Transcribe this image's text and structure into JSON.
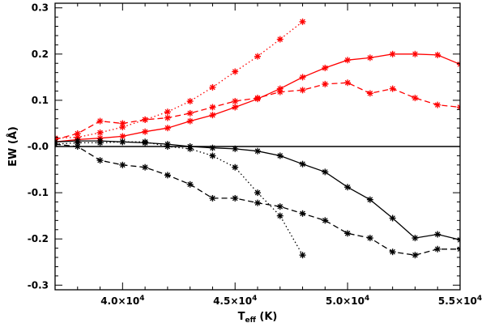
{
  "chart_data": {
    "type": "line",
    "title": "",
    "xlabel": {
      "main": "T",
      "sub": "eff",
      "unit": " (K)"
    },
    "ylabel": "EW (Å)",
    "xlim": [
      37000,
      55000
    ],
    "ylim": [
      -0.31,
      0.31
    ],
    "x_ticks": [
      {
        "value": 40000,
        "mantissa": "4.0×10",
        "exp": "4"
      },
      {
        "value": 45000,
        "mantissa": "4.5×10",
        "exp": "4"
      },
      {
        "value": 50000,
        "mantissa": "5.0×10",
        "exp": "4"
      },
      {
        "value": 55000,
        "mantissa": "5.5×10",
        "exp": "4"
      }
    ],
    "x_minor_step": 1000,
    "y_ticks": [
      {
        "value": 0.3,
        "label": "0.3"
      },
      {
        "value": 0.2,
        "label": "0.2"
      },
      {
        "value": 0.1,
        "label": "0.1"
      },
      {
        "value": 0.0,
        "label": "-0.0"
      },
      {
        "value": -0.1,
        "label": "-0.1"
      },
      {
        "value": -0.2,
        "label": "-0.2"
      },
      {
        "value": -0.3,
        "label": "-0.3"
      }
    ],
    "y_minor_step": 0.02,
    "reference_line": 0,
    "series": [
      {
        "name": "red-solid",
        "color": "#ff0000",
        "dash": "solid",
        "x": [
          37000,
          38000,
          39000,
          40000,
          41000,
          42000,
          43000,
          44000,
          45000,
          46000,
          47000,
          48000,
          49000,
          50000,
          51000,
          52000,
          53000,
          54000,
          55000
        ],
        "y": [
          0.01,
          0.015,
          0.018,
          0.022,
          0.032,
          0.04,
          0.055,
          0.068,
          0.085,
          0.103,
          0.125,
          0.15,
          0.17,
          0.187,
          0.192,
          0.2,
          0.2,
          0.198,
          0.178
        ]
      },
      {
        "name": "red-dashed",
        "color": "#ff0000",
        "dash": "dashed",
        "x": [
          37000,
          38000,
          39000,
          40000,
          41000,
          42000,
          43000,
          44000,
          45000,
          46000,
          47000,
          48000,
          49000,
          50000,
          51000,
          52000,
          53000,
          54000,
          55000
        ],
        "y": [
          0.015,
          0.028,
          0.055,
          0.05,
          0.058,
          0.062,
          0.072,
          0.085,
          0.098,
          0.105,
          0.118,
          0.122,
          0.135,
          0.138,
          0.115,
          0.125,
          0.105,
          0.09,
          0.085
        ]
      },
      {
        "name": "red-dotted",
        "color": "#ff0000",
        "dash": "dotted",
        "x": [
          37000,
          38000,
          39000,
          40000,
          41000,
          42000,
          43000,
          44000,
          45000,
          46000,
          47000,
          48000
        ],
        "y": [
          0.018,
          0.02,
          0.03,
          0.042,
          0.058,
          0.075,
          0.098,
          0.128,
          0.162,
          0.195,
          0.232,
          0.27
        ]
      },
      {
        "name": "black-solid",
        "color": "#000000",
        "dash": "solid",
        "x": [
          37000,
          38000,
          39000,
          40000,
          41000,
          42000,
          43000,
          44000,
          45000,
          46000,
          47000,
          48000,
          49000,
          50000,
          51000,
          52000,
          53000,
          54000,
          55000
        ],
        "y": [
          0.01,
          0.012,
          0.012,
          0.01,
          0.008,
          0.005,
          0.0,
          -0.003,
          -0.005,
          -0.01,
          -0.02,
          -0.038,
          -0.055,
          -0.088,
          -0.115,
          -0.155,
          -0.198,
          -0.19,
          -0.202
        ]
      },
      {
        "name": "black-dashed",
        "color": "#000000",
        "dash": "dashed",
        "x": [
          37000,
          38000,
          39000,
          40000,
          41000,
          42000,
          43000,
          44000,
          45000,
          46000,
          47000,
          48000,
          49000,
          50000,
          51000,
          52000,
          53000,
          54000,
          55000
        ],
        "y": [
          0.005,
          0.0,
          -0.03,
          -0.04,
          -0.045,
          -0.062,
          -0.082,
          -0.112,
          -0.112,
          -0.122,
          -0.13,
          -0.145,
          -0.16,
          -0.188,
          -0.198,
          -0.228,
          -0.235,
          -0.222,
          -0.222
        ]
      },
      {
        "name": "black-dotted",
        "color": "#000000",
        "dash": "dotted",
        "x": [
          37000,
          38000,
          39000,
          40000,
          41000,
          42000,
          43000,
          44000,
          45000,
          46000,
          47000,
          48000
        ],
        "y": [
          0.005,
          0.008,
          0.008,
          0.01,
          0.01,
          0.0,
          -0.005,
          -0.02,
          -0.045,
          -0.1,
          -0.15,
          -0.235
        ]
      }
    ]
  }
}
